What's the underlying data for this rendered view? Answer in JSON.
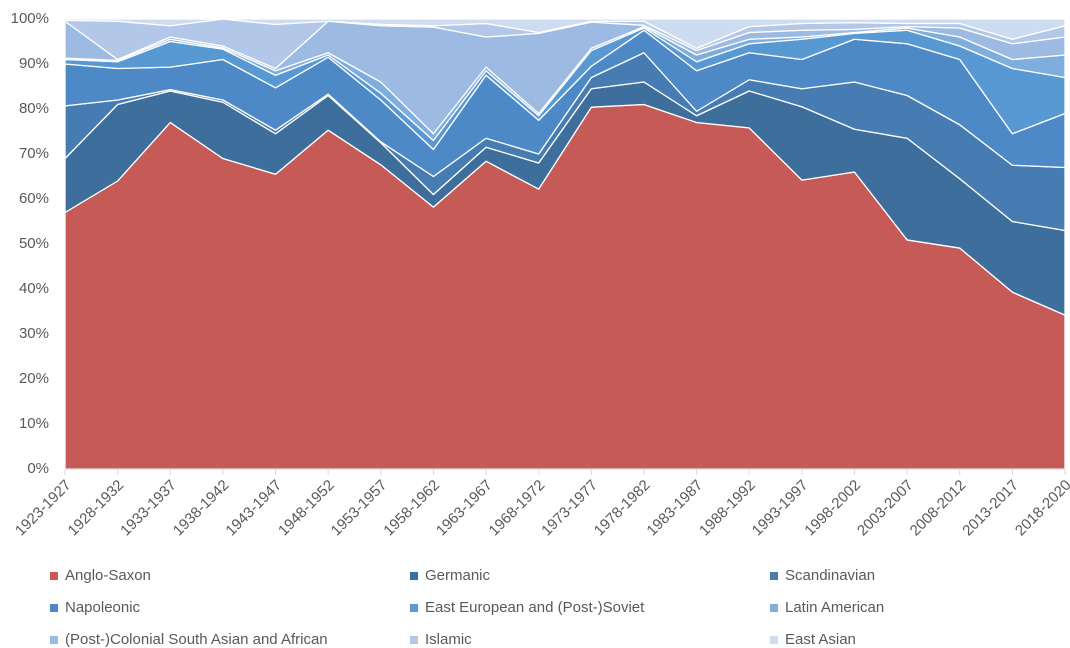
{
  "chart_data": {
    "type": "area",
    "stacked": true,
    "categories": [
      "1923-1927",
      "1928-1932",
      "1933-1937",
      "1938-1942",
      "1943-1947",
      "1948-1952",
      "1953-1957",
      "1958-1962",
      "1963-1967",
      "1968-1972",
      "1973-1977",
      "1978-1982",
      "1983-1987",
      "1988-1992",
      "1993-1997",
      "1998-2002",
      "2003-2007",
      "2008-2012",
      "2013-2017",
      "2018-2020"
    ],
    "series": [
      {
        "name": "Anglo-Saxon",
        "color": "#c55a57",
        "values": [
          57,
          64,
          77,
          69,
          65.5,
          75.3,
          67.6,
          58.2,
          68.4,
          62.2,
          80.4,
          81,
          77,
          75.8,
          64.2,
          66,
          50.9,
          49.1,
          39.3,
          34.2
        ]
      },
      {
        "name": "Germanic",
        "color": "#3e6e9c",
        "values": [
          12,
          17,
          7,
          12.5,
          9,
          7.7,
          4.9,
          2.8,
          3.1,
          5.8,
          4.1,
          5,
          1.5,
          8.2,
          16.3,
          9.5,
          22.6,
          15.4,
          15.7,
          18.8
        ]
      },
      {
        "name": "Scandinavian",
        "color": "#467cb2",
        "values": [
          11.7,
          1,
          0.3,
          0.5,
          0.8,
          0.3,
          0.2,
          4,
          2,
          2,
          2.5,
          6.5,
          1,
          2.5,
          4,
          10.5,
          9.5,
          12,
          12.5,
          14
        ]
      },
      {
        "name": "Napoleonic",
        "color": "#4d89c6",
        "values": [
          9.3,
          7,
          5,
          9,
          9.4,
          8.2,
          9.3,
          6,
          14,
          7.5,
          2.5,
          5,
          9,
          6,
          6.5,
          9.5,
          11.5,
          14.5,
          7,
          12
        ]
      },
      {
        "name": "East European and (Post-)Soviet",
        "color": "#5898d3",
        "values": [
          1,
          1.5,
          5.7,
          2.3,
          2.8,
          0.5,
          1.5,
          2,
          1,
          1,
          3.5,
          0.5,
          2,
          2,
          4.5,
          1.3,
          3,
          3,
          14.5,
          8
        ]
      },
      {
        "name": "Latin American",
        "color": "#7daedd",
        "values": [
          0.3,
          0.3,
          0.5,
          0.3,
          1,
          0.5,
          2.5,
          1.5,
          0.8,
          0.5,
          0.5,
          0.3,
          1.5,
          1,
          0.5,
          0.2,
          0.5,
          2,
          2,
          5
        ]
      },
      {
        "name": "(Post-)Colonial South Asian and African",
        "color": "#9dbae2",
        "values": [
          8.2,
          0.2,
          0.5,
          0.4,
          0.5,
          7,
          12.5,
          23.7,
          6.7,
          17.8,
          5.8,
          0.3,
          1,
          1.5,
          1.5,
          0.7,
          0.3,
          2,
          3.5,
          4
        ]
      },
      {
        "name": "Islamic",
        "color": "#b3c7e8",
        "values": [
          0.2,
          8.5,
          2.5,
          6,
          9.8,
          0,
          0.3,
          0.3,
          3,
          0.2,
          0.2,
          0.9,
          0.5,
          1.3,
          1.5,
          1.5,
          0.7,
          1,
          1,
          2.5
        ]
      },
      {
        "name": "East Asian",
        "color": "#cddcf0",
        "values": [
          0.3,
          0.5,
          1.5,
          0,
          1.2,
          0.5,
          1.2,
          1.5,
          1,
          3,
          0.5,
          0.5,
          6.5,
          1.7,
          1,
          0.8,
          1,
          1,
          4.5,
          1.5
        ]
      }
    ],
    "ylim": [
      0,
      100
    ],
    "yticks": [
      {
        "value": 0,
        "label": "0%"
      },
      {
        "value": 10,
        "label": "10%"
      },
      {
        "value": 20,
        "label": "20%"
      },
      {
        "value": 30,
        "label": "30%"
      },
      {
        "value": 40,
        "label": "40%"
      },
      {
        "value": 50,
        "label": "50%"
      },
      {
        "value": 60,
        "label": "60%"
      },
      {
        "value": 70,
        "label": "70%"
      },
      {
        "value": 80,
        "label": "80%"
      },
      {
        "value": 90,
        "label": "90%"
      },
      {
        "value": 100,
        "label": "100%"
      }
    ],
    "legend": "bottom"
  }
}
